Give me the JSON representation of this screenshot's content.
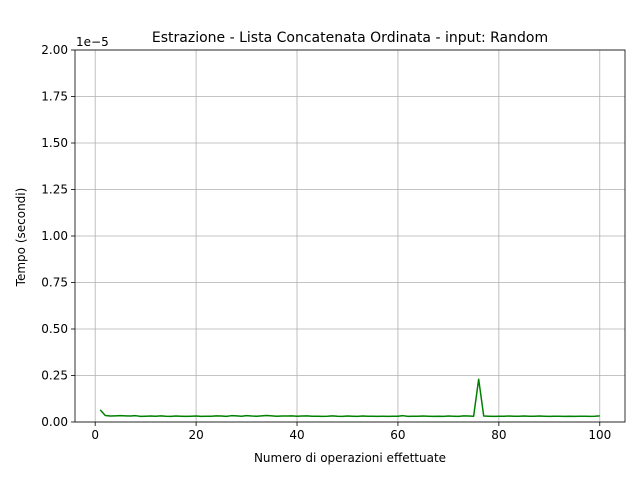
{
  "chart_data": {
    "type": "line",
    "title": "Estrazione - Lista Concatenata Ordinata - input: Random",
    "xlabel": "Numero di operazioni effettuate",
    "ylabel": "Tempo (secondi)",
    "y_offset_label": "1e−5",
    "xlim": [
      -4,
      105
    ],
    "ylim": [
      0,
      2.0
    ],
    "x_ticks": [
      0,
      20,
      40,
      60,
      80,
      100
    ],
    "x_tick_labels": [
      "0",
      "20",
      "40",
      "60",
      "80",
      "100"
    ],
    "y_ticks": [
      0,
      0.25,
      0.5,
      0.75,
      1.0,
      1.25,
      1.5,
      1.75,
      2.0
    ],
    "y_tick_labels": [
      "0.00",
      "0.25",
      "0.50",
      "0.75",
      "1.00",
      "1.25",
      "1.50",
      "1.75",
      "2.00"
    ],
    "grid": true,
    "line_color": "#008000",
    "series": [
      {
        "x": [
          1,
          2,
          3,
          4,
          5,
          6,
          7,
          8,
          9,
          10,
          11,
          12,
          13,
          14,
          15,
          16,
          17,
          18,
          19,
          20,
          21,
          22,
          23,
          24,
          25,
          26,
          27,
          28,
          29,
          30,
          31,
          32,
          33,
          34,
          35,
          36,
          37,
          38,
          39,
          40,
          41,
          42,
          43,
          44,
          45,
          46,
          47,
          48,
          49,
          50,
          51,
          52,
          53,
          54,
          55,
          56,
          57,
          58,
          59,
          60,
          61,
          62,
          63,
          64,
          65,
          66,
          67,
          68,
          69,
          70,
          71,
          72,
          73,
          74,
          75,
          76,
          77,
          78,
          79,
          80,
          81,
          82,
          83,
          84,
          85,
          86,
          87,
          88,
          89,
          90,
          91,
          92,
          93,
          94,
          95,
          96,
          97,
          98,
          99,
          100
        ],
        "values": [
          0.065,
          0.035,
          0.032,
          0.033,
          0.034,
          0.033,
          0.032,
          0.034,
          0.03,
          0.031,
          0.032,
          0.031,
          0.033,
          0.031,
          0.03,
          0.032,
          0.031,
          0.03,
          0.031,
          0.032,
          0.03,
          0.031,
          0.031,
          0.033,
          0.032,
          0.03,
          0.034,
          0.033,
          0.031,
          0.034,
          0.032,
          0.031,
          0.033,
          0.035,
          0.033,
          0.031,
          0.032,
          0.032,
          0.033,
          0.031,
          0.032,
          0.033,
          0.031,
          0.031,
          0.03,
          0.031,
          0.033,
          0.031,
          0.03,
          0.032,
          0.031,
          0.03,
          0.032,
          0.031,
          0.031,
          0.03,
          0.031,
          0.03,
          0.031,
          0.031,
          0.034,
          0.03,
          0.031,
          0.031,
          0.032,
          0.031,
          0.03,
          0.031,
          0.03,
          0.032,
          0.031,
          0.03,
          0.033,
          0.032,
          0.031,
          0.23,
          0.032,
          0.031,
          0.03,
          0.031,
          0.031,
          0.032,
          0.031,
          0.031,
          0.032,
          0.031,
          0.031,
          0.032,
          0.031,
          0.03,
          0.031,
          0.031,
          0.03,
          0.031,
          0.03,
          0.031,
          0.031,
          0.03,
          0.031,
          0.033
        ]
      }
    ]
  }
}
